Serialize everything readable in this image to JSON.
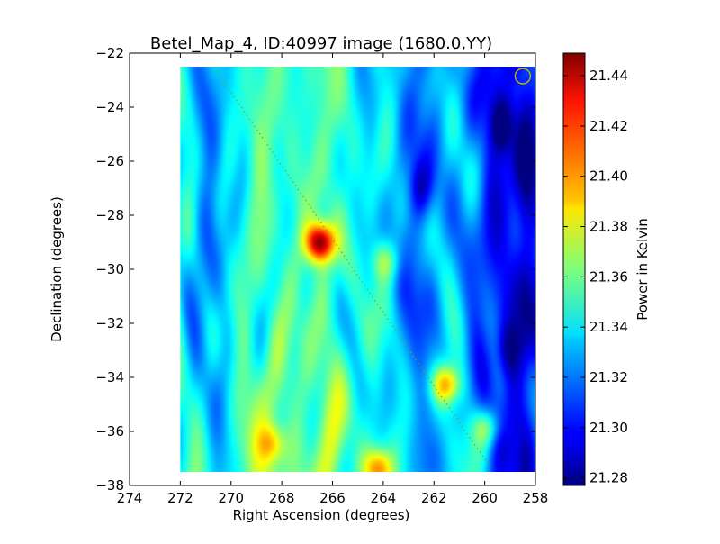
{
  "chart_data": {
    "type": "heatmap",
    "title": "Betel_Map_4, ID:40997 image (1680.0,YY)",
    "xlabel": "Right Ascension (degrees)",
    "ylabel": "Declination (degrees)",
    "xlim": [
      274,
      258
    ],
    "ylim": [
      -38,
      -22
    ],
    "x_ticks": [
      274,
      272,
      270,
      268,
      266,
      264,
      262,
      260,
      258
    ],
    "x_tick_labels": [
      "274",
      "272",
      "270",
      "268",
      "266",
      "264",
      "262",
      "260",
      "258"
    ],
    "y_ticks": [
      -22,
      -24,
      -26,
      -28,
      -30,
      -32,
      -34,
      -36,
      -38
    ],
    "y_tick_labels": [
      "−22",
      "−24",
      "−26",
      "−28",
      "−30",
      "−32",
      "−34",
      "−36",
      "−38"
    ],
    "data_extent": {
      "ra": [
        272,
        258
      ],
      "dec": [
        -37.5,
        -22.5
      ]
    },
    "colormap": "jet",
    "colorbar": {
      "label": "Power in Kelvin",
      "min": 21.277,
      "max": 21.449,
      "ticks": [
        21.28,
        21.3,
        21.32,
        21.34,
        21.36,
        21.38,
        21.4,
        21.42,
        21.44
      ],
      "tick_labels": [
        "21.28",
        "21.30",
        "21.32",
        "21.34",
        "21.36",
        "21.38",
        "21.40",
        "21.42",
        "21.44"
      ]
    },
    "base_level": 21.345,
    "hot_spots": [
      {
        "ra": 266.5,
        "dec": -29.0,
        "peak": 21.448
      },
      {
        "ra": 261.5,
        "dec": -34.3,
        "peak": 21.405
      },
      {
        "ra": 264.2,
        "dec": -37.4,
        "peak": 21.4
      },
      {
        "ra": 259.9,
        "dec": -35.9,
        "peak": 21.385
      },
      {
        "ra": 268.4,
        "dec": -36.5,
        "peak": 21.38
      },
      {
        "ra": 263.9,
        "dec": -29.7,
        "peak": 21.375
      }
    ],
    "cold_spots": [
      {
        "ra": 259.3,
        "dec": -24.6,
        "level": 21.28
      },
      {
        "ra": 262.5,
        "dec": -27.0,
        "level": 21.3
      },
      {
        "ra": 259.0,
        "dec": -33.0,
        "level": 21.3
      }
    ],
    "overlay_line": {
      "from": {
        "ra": 270.7,
        "dec": -22.5
      },
      "to": {
        "ra": 259.8,
        "dec": -37.3
      },
      "color": "#9a9a00",
      "style": "dotted"
    },
    "beam_marker": {
      "ra": 258.5,
      "dec": -22.85,
      "radius_deg": 0.3,
      "color": "#d4b400"
    },
    "grid": false
  }
}
